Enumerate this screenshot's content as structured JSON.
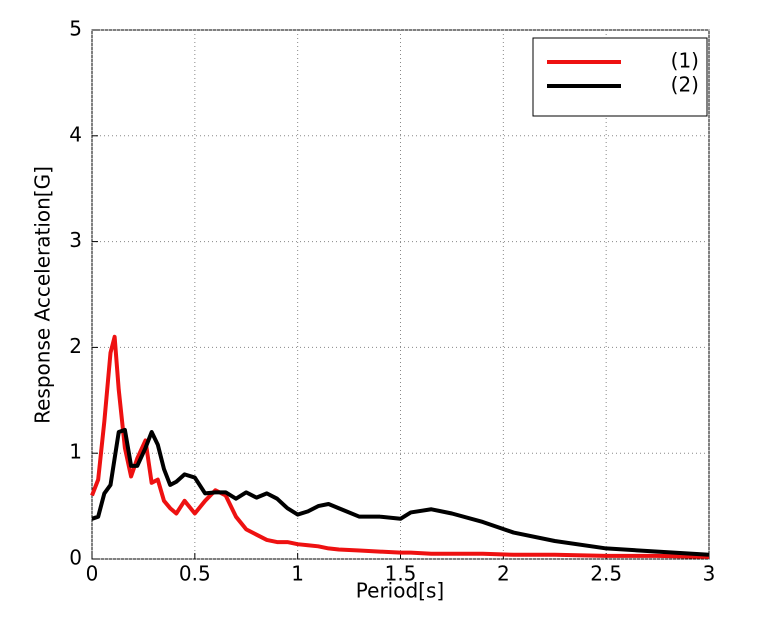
{
  "chart_data": {
    "type": "line",
    "xlabel": "Period[s]",
    "ylabel": "Response Acceleration[G]",
    "x": [
      0,
      0.03,
      0.06,
      0.09,
      0.11,
      0.13,
      0.16,
      0.19,
      0.22,
      0.26,
      0.29,
      0.32,
      0.35,
      0.38,
      0.41,
      0.45,
      0.5,
      0.55,
      0.6,
      0.65,
      0.7,
      0.75,
      0.8,
      0.85,
      0.9,
      0.95,
      1.0,
      1.05,
      1.1,
      1.15,
      1.2,
      1.3,
      1.4,
      1.5,
      1.55,
      1.65,
      1.75,
      1.9,
      2.05,
      2.25,
      2.5,
      2.75,
      3.0
    ],
    "series": [
      {
        "name": "(1)",
        "color": "#ee1111",
        "values": [
          0.6,
          0.75,
          1.3,
          1.95,
          2.1,
          1.6,
          1.05,
          0.78,
          0.95,
          1.12,
          0.72,
          0.75,
          0.55,
          0.48,
          0.43,
          0.55,
          0.43,
          0.55,
          0.65,
          0.6,
          0.4,
          0.28,
          0.23,
          0.18,
          0.16,
          0.16,
          0.14,
          0.13,
          0.12,
          0.1,
          0.09,
          0.08,
          0.07,
          0.06,
          0.06,
          0.05,
          0.05,
          0.05,
          0.04,
          0.04,
          0.03,
          0.03,
          0.02
        ]
      },
      {
        "name": "(2)",
        "color": "#000000",
        "values": [
          0.38,
          0.4,
          0.62,
          0.7,
          0.95,
          1.2,
          1.22,
          0.88,
          0.88,
          1.05,
          1.2,
          1.08,
          0.85,
          0.7,
          0.73,
          0.8,
          0.77,
          0.62,
          0.63,
          0.63,
          0.57,
          0.63,
          0.58,
          0.62,
          0.57,
          0.48,
          0.42,
          0.45,
          0.5,
          0.52,
          0.48,
          0.4,
          0.4,
          0.38,
          0.44,
          0.47,
          0.43,
          0.35,
          0.25,
          0.17,
          0.1,
          0.07,
          0.04
        ]
      }
    ],
    "xlim": [
      0,
      3
    ],
    "xticks": [
      0,
      0.5,
      1,
      1.5,
      2,
      2.5,
      3
    ],
    "ylim": [
      0,
      5
    ],
    "yticks": [
      0,
      1,
      2,
      3,
      4,
      5
    ],
    "grid": true,
    "legend": "upper right"
  }
}
